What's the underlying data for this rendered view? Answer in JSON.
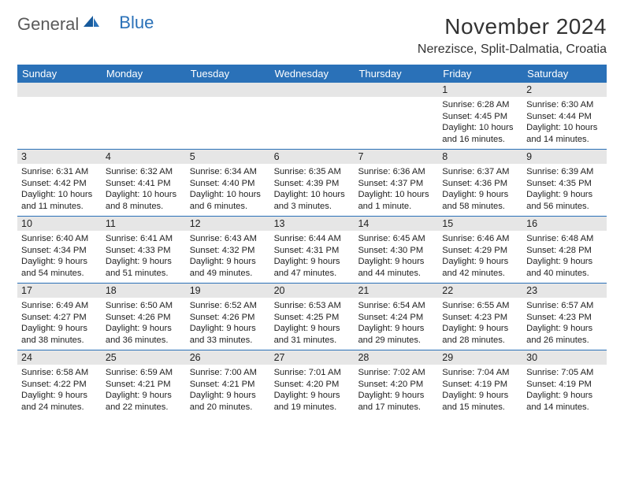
{
  "brand": {
    "word1": "General",
    "word2": "Blue"
  },
  "title": "November 2024",
  "location": "Nerezisce, Split-Dalmatia, Croatia",
  "colors": {
    "header_bg": "#2a71b8",
    "header_fg": "#ffffff",
    "daynum_bg": "#e6e6e6",
    "blank_bg": "#e6e6e6",
    "text": "#222222",
    "logo_gray": "#5a5a5a",
    "logo_blue": "#2a71b8",
    "rule": "#2a71b8"
  },
  "weekdays": [
    "Sunday",
    "Monday",
    "Tuesday",
    "Wednesday",
    "Thursday",
    "Friday",
    "Saturday"
  ],
  "weeks": [
    [
      null,
      null,
      null,
      null,
      null,
      {
        "n": "1",
        "sr": "6:28 AM",
        "ss": "4:45 PM",
        "dl": "10 hours and 16 minutes."
      },
      {
        "n": "2",
        "sr": "6:30 AM",
        "ss": "4:44 PM",
        "dl": "10 hours and 14 minutes."
      }
    ],
    [
      {
        "n": "3",
        "sr": "6:31 AM",
        "ss": "4:42 PM",
        "dl": "10 hours and 11 minutes."
      },
      {
        "n": "4",
        "sr": "6:32 AM",
        "ss": "4:41 PM",
        "dl": "10 hours and 8 minutes."
      },
      {
        "n": "5",
        "sr": "6:34 AM",
        "ss": "4:40 PM",
        "dl": "10 hours and 6 minutes."
      },
      {
        "n": "6",
        "sr": "6:35 AM",
        "ss": "4:39 PM",
        "dl": "10 hours and 3 minutes."
      },
      {
        "n": "7",
        "sr": "6:36 AM",
        "ss": "4:37 PM",
        "dl": "10 hours and 1 minute."
      },
      {
        "n": "8",
        "sr": "6:37 AM",
        "ss": "4:36 PM",
        "dl": "9 hours and 58 minutes."
      },
      {
        "n": "9",
        "sr": "6:39 AM",
        "ss": "4:35 PM",
        "dl": "9 hours and 56 minutes."
      }
    ],
    [
      {
        "n": "10",
        "sr": "6:40 AM",
        "ss": "4:34 PM",
        "dl": "9 hours and 54 minutes."
      },
      {
        "n": "11",
        "sr": "6:41 AM",
        "ss": "4:33 PM",
        "dl": "9 hours and 51 minutes."
      },
      {
        "n": "12",
        "sr": "6:43 AM",
        "ss": "4:32 PM",
        "dl": "9 hours and 49 minutes."
      },
      {
        "n": "13",
        "sr": "6:44 AM",
        "ss": "4:31 PM",
        "dl": "9 hours and 47 minutes."
      },
      {
        "n": "14",
        "sr": "6:45 AM",
        "ss": "4:30 PM",
        "dl": "9 hours and 44 minutes."
      },
      {
        "n": "15",
        "sr": "6:46 AM",
        "ss": "4:29 PM",
        "dl": "9 hours and 42 minutes."
      },
      {
        "n": "16",
        "sr": "6:48 AM",
        "ss": "4:28 PM",
        "dl": "9 hours and 40 minutes."
      }
    ],
    [
      {
        "n": "17",
        "sr": "6:49 AM",
        "ss": "4:27 PM",
        "dl": "9 hours and 38 minutes."
      },
      {
        "n": "18",
        "sr": "6:50 AM",
        "ss": "4:26 PM",
        "dl": "9 hours and 36 minutes."
      },
      {
        "n": "19",
        "sr": "6:52 AM",
        "ss": "4:26 PM",
        "dl": "9 hours and 33 minutes."
      },
      {
        "n": "20",
        "sr": "6:53 AM",
        "ss": "4:25 PM",
        "dl": "9 hours and 31 minutes."
      },
      {
        "n": "21",
        "sr": "6:54 AM",
        "ss": "4:24 PM",
        "dl": "9 hours and 29 minutes."
      },
      {
        "n": "22",
        "sr": "6:55 AM",
        "ss": "4:23 PM",
        "dl": "9 hours and 28 minutes."
      },
      {
        "n": "23",
        "sr": "6:57 AM",
        "ss": "4:23 PM",
        "dl": "9 hours and 26 minutes."
      }
    ],
    [
      {
        "n": "24",
        "sr": "6:58 AM",
        "ss": "4:22 PM",
        "dl": "9 hours and 24 minutes."
      },
      {
        "n": "25",
        "sr": "6:59 AM",
        "ss": "4:21 PM",
        "dl": "9 hours and 22 minutes."
      },
      {
        "n": "26",
        "sr": "7:00 AM",
        "ss": "4:21 PM",
        "dl": "9 hours and 20 minutes."
      },
      {
        "n": "27",
        "sr": "7:01 AM",
        "ss": "4:20 PM",
        "dl": "9 hours and 19 minutes."
      },
      {
        "n": "28",
        "sr": "7:02 AM",
        "ss": "4:20 PM",
        "dl": "9 hours and 17 minutes."
      },
      {
        "n": "29",
        "sr": "7:04 AM",
        "ss": "4:19 PM",
        "dl": "9 hours and 15 minutes."
      },
      {
        "n": "30",
        "sr": "7:05 AM",
        "ss": "4:19 PM",
        "dl": "9 hours and 14 minutes."
      }
    ]
  ],
  "labels": {
    "sunrise": "Sunrise: ",
    "sunset": "Sunset: ",
    "daylight": "Daylight: "
  }
}
